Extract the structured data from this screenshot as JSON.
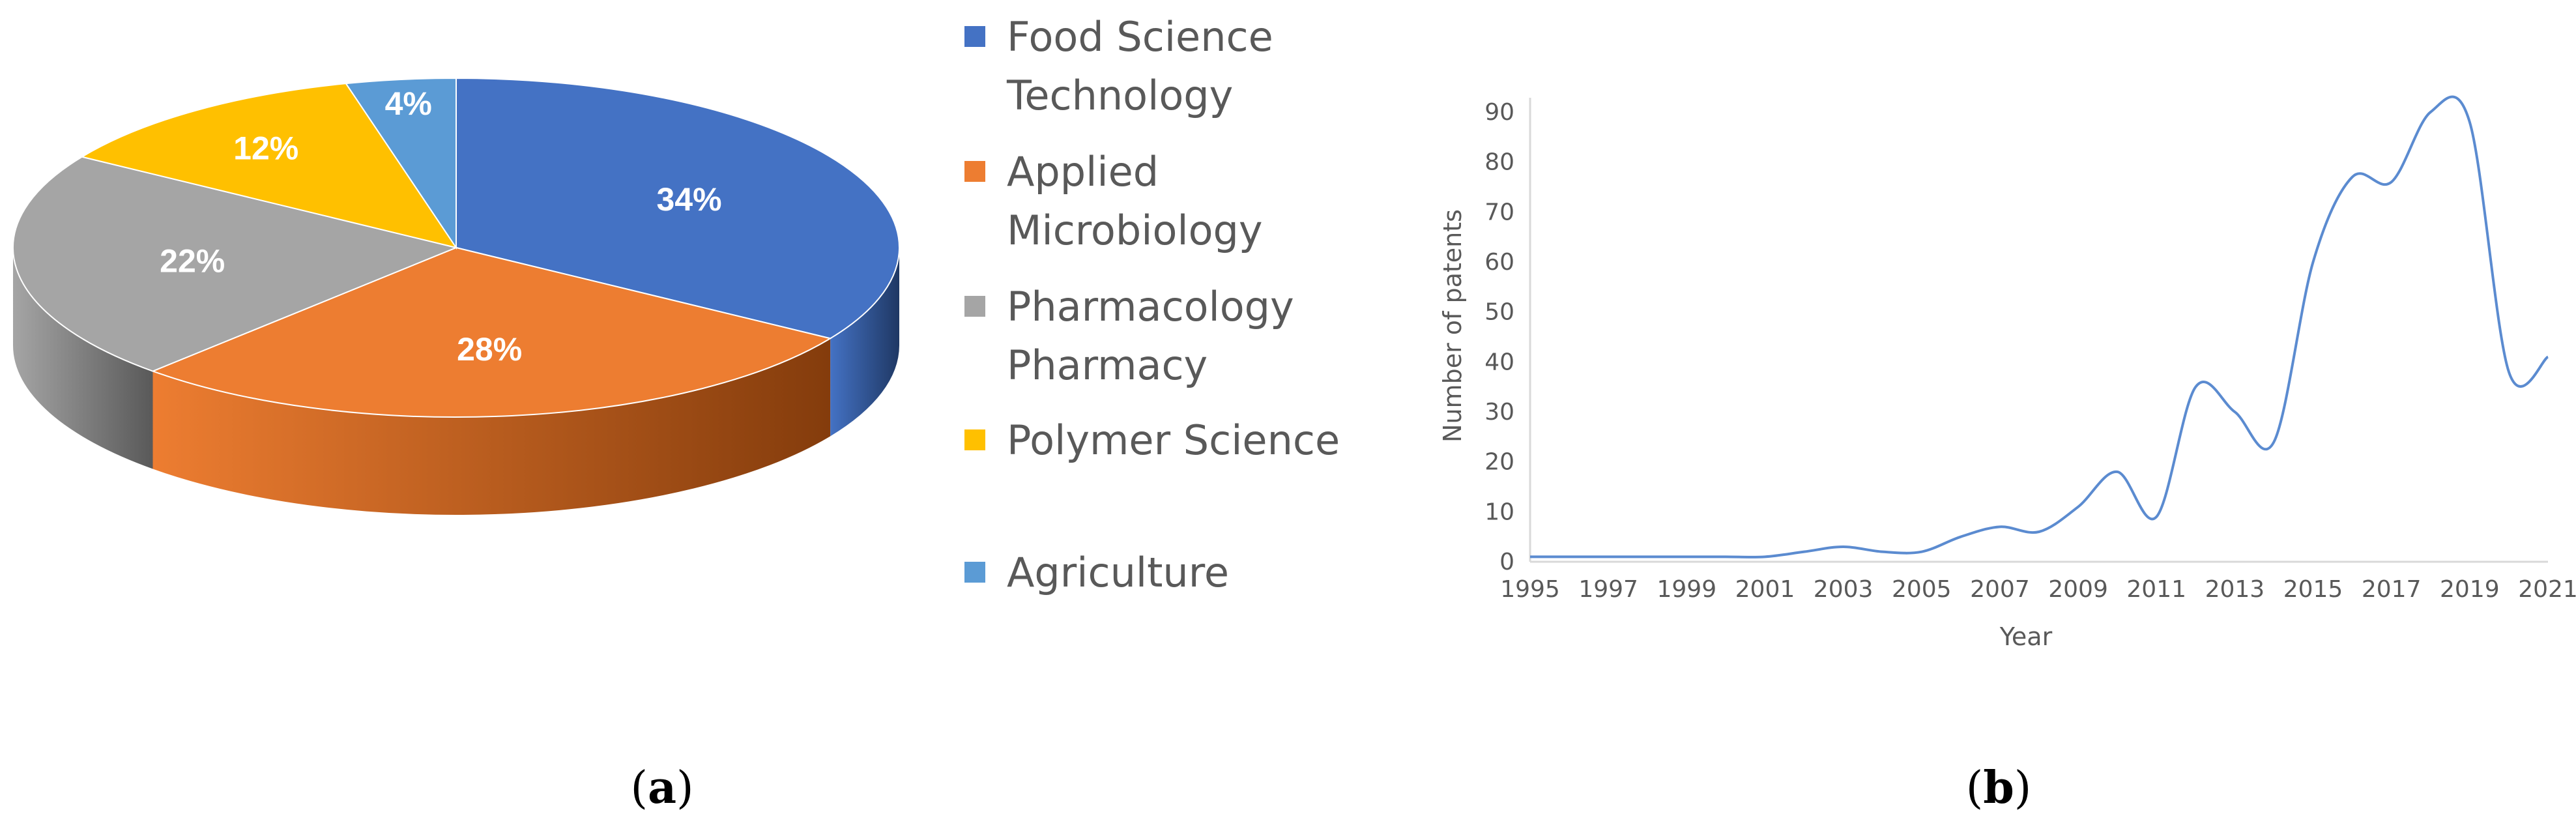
{
  "chart_data": [
    {
      "type": "pie",
      "panel_label": [
        "(",
        "a",
        ")"
      ],
      "slices": [
        {
          "name": "Food Science Technology",
          "value": 34,
          "label": "34%",
          "color": "#4472C4",
          "dark": "#1F3864",
          "legend_lines": [
            "Food Science",
            "Technology"
          ]
        },
        {
          "name": "Applied Microbiology",
          "value": 28,
          "label": "28%",
          "color": "#ED7D31",
          "dark": "#843C0C",
          "legend_lines": [
            "Applied",
            "Microbiology"
          ]
        },
        {
          "name": "Pharmacology Pharmacy",
          "value": 22,
          "label": "22%",
          "color": "#A5A5A5",
          "dark": "#595959",
          "legend_lines": [
            "Pharmacology",
            "Pharmacy"
          ]
        },
        {
          "name": "Polymer Science",
          "value": 12,
          "label": "12%",
          "color": "#FFC000",
          "dark": "#7F6000",
          "legend_lines": [
            "Polymer Science"
          ]
        },
        {
          "name": "Agriculture",
          "value": 4,
          "label": "4%",
          "color": "#5B9BD5",
          "dark": "#1F4E79",
          "legend_lines": [
            "Agriculture"
          ]
        }
      ],
      "legend_placement": "right"
    },
    {
      "type": "line",
      "panel_label": [
        "(",
        "b",
        ")"
      ],
      "xlabel": "Year",
      "ylabel": "Number of patents",
      "xlim": [
        1995,
        2021
      ],
      "ylim": [
        0,
        90
      ],
      "x_ticks": [
        1995,
        1997,
        1999,
        2001,
        2003,
        2005,
        2007,
        2009,
        2011,
        2013,
        2015,
        2017,
        2019,
        2021
      ],
      "y_ticks": [
        0,
        10,
        20,
        30,
        40,
        50,
        60,
        70,
        80,
        90
      ],
      "grid": false,
      "line_color": "#5B8BD0",
      "x": [
        1995,
        1996,
        1997,
        1998,
        1999,
        2000,
        2001,
        2002,
        2003,
        2004,
        2005,
        2006,
        2007,
        2008,
        2009,
        2010,
        2011,
        2012,
        2013,
        2014,
        2015,
        2016,
        2017,
        2018,
        2019,
        2020,
        2021
      ],
      "y": [
        1,
        1,
        1,
        1,
        1,
        1,
        1,
        2,
        3,
        2,
        2,
        5,
        7,
        6,
        11,
        18,
        9,
        35,
        30,
        24,
        60,
        77,
        76,
        90,
        88,
        38,
        41
      ]
    }
  ]
}
